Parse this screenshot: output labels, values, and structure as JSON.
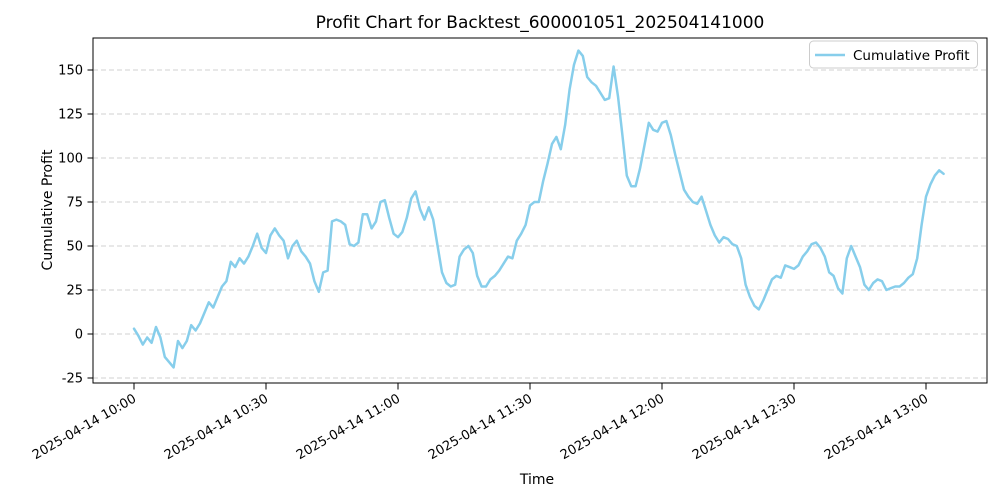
{
  "chart_data": {
    "type": "line",
    "title": "Profit Chart for Backtest_600001051_202504141000",
    "xlabel": "Time",
    "ylabel": "Cumulative Profit",
    "grid": "y-axis dashed horizontal gridlines",
    "legend": {
      "position": "upper right",
      "entries": [
        {
          "label": "Cumulative Profit",
          "color": "#87CEEB"
        }
      ]
    },
    "y_ticks": [
      150,
      125,
      100,
      75,
      50,
      25,
      0,
      -25
    ],
    "ylim": [
      -27.8,
      168.2
    ],
    "x_tick_labels": [
      "2025-04-14 10:00",
      "2025-04-14 10:30",
      "2025-04-14 11:00",
      "2025-04-14 11:30",
      "2025-04-14 12:00",
      "2025-04-14 12:30",
      "2025-04-14 13:00"
    ],
    "x_tick_rotation_deg": 30,
    "series": [
      {
        "name": "Cumulative Profit",
        "color": "#87CEEB",
        "line_width": 2.5,
        "x_start": "2025-04-14 10:00",
        "x_interval_minutes": 1,
        "values": [
          3,
          -1,
          -6,
          -2,
          -5,
          4,
          -2,
          -13,
          -16,
          -19,
          -4,
          -8,
          -4,
          5,
          2,
          6,
          12,
          18,
          15,
          21,
          27,
          30,
          41,
          38,
          43,
          40,
          44,
          50,
          57,
          49,
          46,
          56,
          60,
          56,
          53,
          43,
          50,
          53,
          47,
          44,
          40,
          30,
          24,
          35,
          36,
          64,
          65,
          64,
          62,
          51,
          50,
          52,
          68,
          68,
          60,
          64,
          75,
          76,
          66,
          57,
          55,
          58,
          66,
          77,
          81,
          71,
          65,
          72,
          65,
          50,
          35,
          29,
          27,
          28,
          44,
          48,
          50,
          46,
          33,
          27,
          27,
          31,
          33,
          36,
          40,
          44,
          43,
          53,
          57,
          62,
          73,
          75,
          75,
          87,
          97,
          108,
          112,
          105,
          119,
          139,
          153,
          161,
          158,
          146,
          143,
          141,
          137,
          133,
          134,
          152,
          135,
          113,
          90,
          84,
          84,
          94,
          107,
          120,
          116,
          115,
          120,
          121,
          113,
          102,
          92,
          82,
          78,
          75,
          74,
          78,
          70,
          62,
          56,
          52,
          55,
          54,
          51,
          50,
          43,
          28,
          21,
          16,
          14,
          19,
          25,
          31,
          33,
          32,
          39,
          38,
          37,
          39,
          44,
          47,
          51,
          52,
          49,
          44,
          35,
          33,
          26,
          23,
          43,
          50,
          44,
          38,
          28,
          25,
          29,
          31,
          30,
          25,
          26,
          27,
          27,
          29,
          32,
          34,
          43,
          62,
          78,
          85,
          90,
          93,
          91
        ]
      }
    ]
  }
}
